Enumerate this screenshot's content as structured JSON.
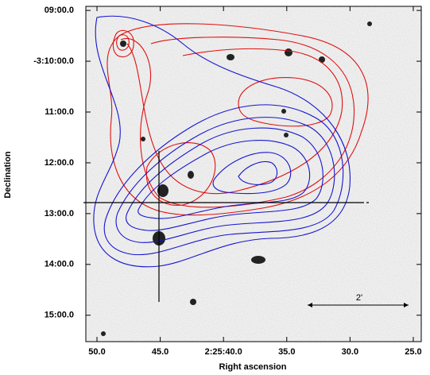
{
  "chart_data": {
    "type": "contour",
    "xlabel": "Right ascension",
    "ylabel": "Declination",
    "xlim": [
      50.88,
      24.37
    ],
    "xticks": [
      {
        "value": 50,
        "label": "50.0"
      },
      {
        "value": 45,
        "label": "45.0"
      },
      {
        "value": 40,
        "label": "2:25:40.0"
      },
      {
        "value": 35,
        "label": "35.0"
      },
      {
        "value": 30,
        "label": "30.0"
      },
      {
        "value": 25,
        "label": "25.0"
      }
    ],
    "ylim": [
      8.92,
      15.52
    ],
    "yticks": [
      {
        "value": 9,
        "label": "09:00.0"
      },
      {
        "value": 10,
        "label": "-3:10:00.0"
      },
      {
        "value": 11,
        "label": "11:00.0"
      },
      {
        "value": 12,
        "label": "12:00.0"
      },
      {
        "value": 13,
        "label": "13:00.0"
      },
      {
        "value": 14,
        "label": "14:00.0"
      },
      {
        "value": 15,
        "label": "15:00.0"
      }
    ],
    "annotations": [
      "2'"
    ]
  }
}
